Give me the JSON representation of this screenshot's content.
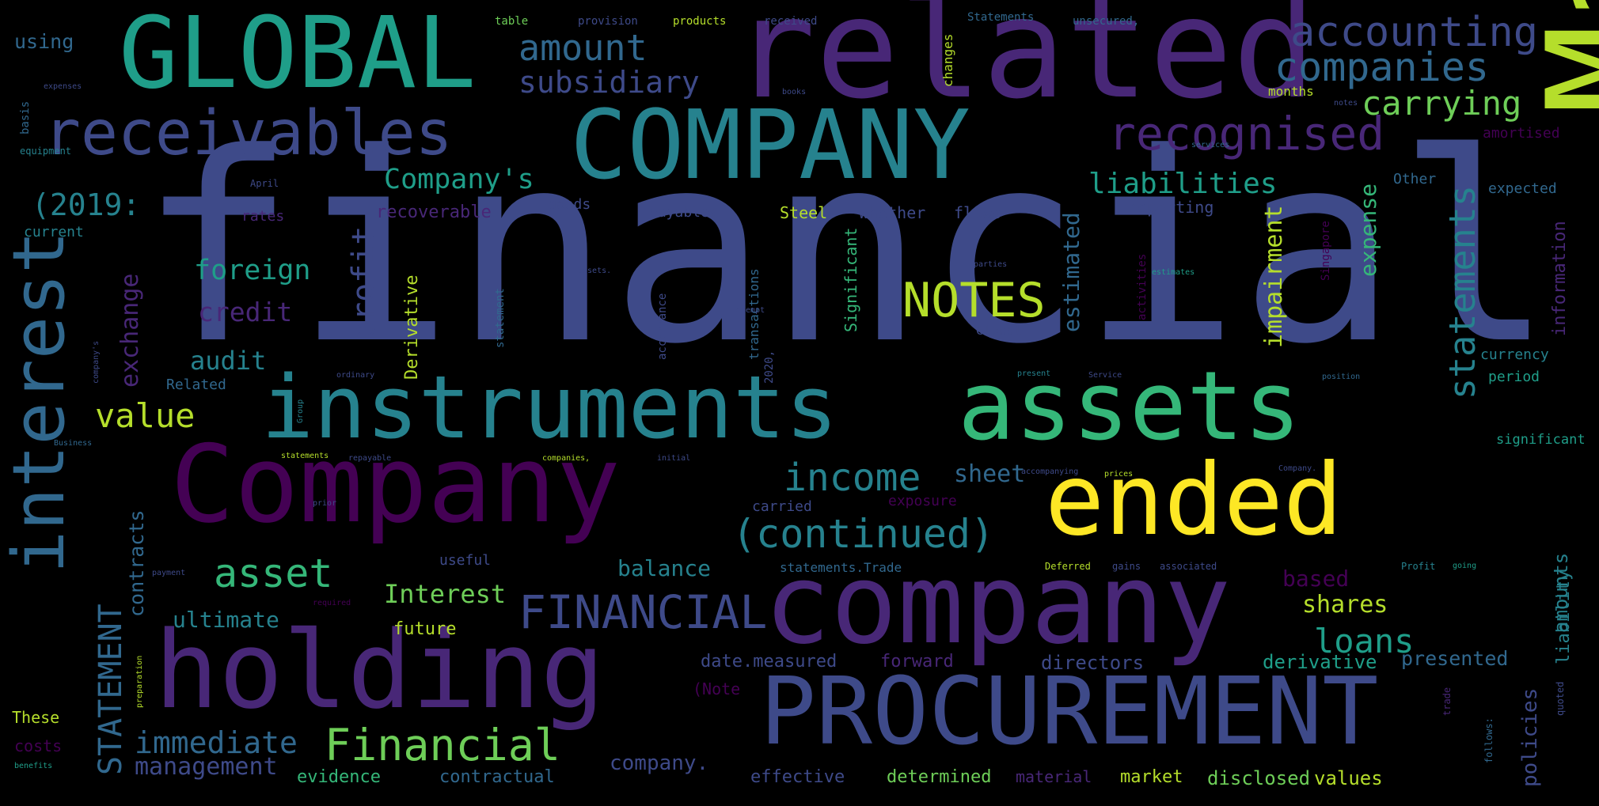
{
  "palette": {
    "background": "#000000",
    "colors": [
      "#440154",
      "#482777",
      "#3e4a89",
      "#31688e",
      "#26828e",
      "#1f9e89",
      "#35b779",
      "#6ece58",
      "#b5de2b",
      "#fde725"
    ]
  },
  "words": [
    {
      "text": "financial",
      "color": "#3e4a89",
      "vertical": false
    },
    {
      "text": "March",
      "color": "#b5de2b",
      "vertical": true
    },
    {
      "text": "related",
      "color": "#482777",
      "vertical": false
    },
    {
      "text": "GLOBAL",
      "color": "#1f9e89",
      "vertical": false
    },
    {
      "text": "COMPANY",
      "color": "#26828e",
      "vertical": false
    },
    {
      "text": "Company",
      "color": "#440154",
      "vertical": false
    },
    {
      "text": "company",
      "color": "#482777",
      "vertical": false
    },
    {
      "text": "instruments",
      "color": "#26828e",
      "vertical": false
    },
    {
      "text": "assets",
      "color": "#35b779",
      "vertical": false
    },
    {
      "text": "holding",
      "color": "#482777",
      "vertical": false
    },
    {
      "text": "ended",
      "color": "#fde725",
      "vertical": false
    },
    {
      "text": "PROCUREMENT",
      "color": "#3e4a89",
      "vertical": false
    },
    {
      "text": "interest",
      "color": "#31688e",
      "vertical": true
    },
    {
      "text": "receivables",
      "color": "#3e4a89",
      "vertical": false
    },
    {
      "text": "recognised",
      "color": "#482777",
      "vertical": false
    },
    {
      "text": "accounting",
      "color": "#3e4a89",
      "vertical": false
    },
    {
      "text": "companies",
      "color": "#31688e",
      "vertical": false
    },
    {
      "text": "amount",
      "color": "#31688e",
      "vertical": false
    },
    {
      "text": "subsidiary",
      "color": "#3e4a89",
      "vertical": false
    },
    {
      "text": "carrying",
      "color": "#6ece58",
      "vertical": false
    },
    {
      "text": "(continued)",
      "color": "#26828e",
      "vertical": false
    },
    {
      "text": "FINANCIAL",
      "color": "#3e4a89",
      "vertical": false
    },
    {
      "text": "Financial",
      "color": "#6ece58",
      "vertical": false
    },
    {
      "text": "statements",
      "color": "#26828e",
      "vertical": true
    },
    {
      "text": "STATEMENT",
      "color": "#31688e",
      "vertical": true
    },
    {
      "text": "income",
      "color": "#26828e",
      "vertical": false
    },
    {
      "text": "asset",
      "color": "#35b779",
      "vertical": false
    },
    {
      "text": "NOTES",
      "color": "#b5de2b",
      "vertical": false
    },
    {
      "text": "profit",
      "color": "#3e4a89",
      "vertical": true
    },
    {
      "text": "liabilities",
      "color": "#1f9e89",
      "vertical": false
    },
    {
      "text": "Company's",
      "color": "#1f9e89",
      "vertical": false
    },
    {
      "text": "loans",
      "color": "#1f9e89",
      "vertical": false
    },
    {
      "text": "value",
      "color": "#b5de2b",
      "vertical": false
    },
    {
      "text": "immediate",
      "color": "#31688e",
      "vertical": false
    },
    {
      "text": "(2019:",
      "color": "#26828e",
      "vertical": false
    },
    {
      "text": "foreign",
      "color": "#1f9e89",
      "vertical": false
    },
    {
      "text": "credit",
      "color": "#482777",
      "vertical": false
    },
    {
      "text": "audit",
      "color": "#26828e",
      "vertical": false
    },
    {
      "text": "exchange",
      "color": "#482777",
      "vertical": true
    },
    {
      "text": "Interest",
      "color": "#6ece58",
      "vertical": false
    },
    {
      "text": "ultimate",
      "color": "#26828e",
      "vertical": false
    },
    {
      "text": "management",
      "color": "#3e4a89",
      "vertical": false
    },
    {
      "text": "shares",
      "color": "#b5de2b",
      "vertical": false
    },
    {
      "text": "sheet",
      "color": "#31688e",
      "vertical": false
    },
    {
      "text": "balance",
      "color": "#26828e",
      "vertical": false
    },
    {
      "text": "based",
      "color": "#440154",
      "vertical": false
    },
    {
      "text": "impairment",
      "color": "#b5de2b",
      "vertical": true
    },
    {
      "text": "estimated",
      "color": "#31688e",
      "vertical": true
    },
    {
      "text": "expense",
      "color": "#35b779",
      "vertical": true
    },
    {
      "text": "contracts",
      "color": "#31688e",
      "vertical": true
    },
    {
      "text": "policies",
      "color": "#3e4a89",
      "vertical": true
    },
    {
      "text": "amounts",
      "color": "#26828e",
      "vertical": true
    },
    {
      "text": "liability",
      "color": "#26828e",
      "vertical": true
    },
    {
      "text": "information",
      "color": "#482777",
      "vertical": true
    },
    {
      "text": "presented",
      "color": "#31688e",
      "vertical": false
    },
    {
      "text": "derivative",
      "color": "#1f9e89",
      "vertical": false
    },
    {
      "text": "directors",
      "color": "#3e4a89",
      "vertical": false
    },
    {
      "text": "date.measured",
      "color": "#3e4a89",
      "vertical": false
    },
    {
      "text": "forward",
      "color": "#482777",
      "vertical": false
    },
    {
      "text": "future",
      "color": "#b5de2b",
      "vertical": false
    },
    {
      "text": "company.",
      "color": "#3e4a89",
      "vertical": false
    },
    {
      "text": "determined",
      "color": "#6ece58",
      "vertical": false
    },
    {
      "text": "effective",
      "color": "#3e4a89",
      "vertical": false
    },
    {
      "text": "contractual",
      "color": "#31688e",
      "vertical": false
    },
    {
      "text": "material",
      "color": "#482777",
      "vertical": false
    },
    {
      "text": "market",
      "color": "#b5de2b",
      "vertical": false
    },
    {
      "text": "disclosed",
      "color": "#6ece58",
      "vertical": false
    },
    {
      "text": "values",
      "color": "#b5de2b",
      "vertical": false
    },
    {
      "text": "evidence",
      "color": "#35b779",
      "vertical": false
    },
    {
      "text": "costs",
      "color": "#440154",
      "vertical": false
    },
    {
      "text": "These",
      "color": "#b5de2b",
      "vertical": false
    },
    {
      "text": "using",
      "color": "#31688e",
      "vertical": false
    },
    {
      "text": "current",
      "color": "#26828e",
      "vertical": false
    },
    {
      "text": "rates",
      "color": "#482777",
      "vertical": false
    },
    {
      "text": "recoverable",
      "color": "#482777",
      "vertical": false
    },
    {
      "text": "goods",
      "color": "#3e4a89",
      "vertical": false
    },
    {
      "text": "payables",
      "color": "#3e4a89",
      "vertical": false
    },
    {
      "text": "Steel",
      "color": "#b5de2b",
      "vertical": false
    },
    {
      "text": "whether",
      "color": "#3e4a89",
      "vertical": false
    },
    {
      "text": "flows",
      "color": "#3e4a89",
      "vertical": false
    },
    {
      "text": "reporting",
      "color": "#3e4a89",
      "vertical": false
    },
    {
      "text": "Other",
      "color": "#31688e",
      "vertical": false
    },
    {
      "text": "expected",
      "color": "#31688e",
      "vertical": false
    },
    {
      "text": "amortised",
      "color": "#440154",
      "vertical": false
    },
    {
      "text": "months",
      "color": "#b5de2b",
      "vertical": false
    },
    {
      "text": "currency",
      "color": "#26828e",
      "vertical": false
    },
    {
      "text": "period",
      "color": "#1f9e89",
      "vertical": false
    },
    {
      "text": "significant",
      "color": "#1f9e89",
      "vertical": false
    },
    {
      "text": "Significant",
      "color": "#35b779",
      "vertical": true
    },
    {
      "text": "Related",
      "color": "#31688e",
      "vertical": false
    },
    {
      "text": "Derivative",
      "color": "#b5de2b",
      "vertical": true
    },
    {
      "text": "carried",
      "color": "#3e4a89",
      "vertical": false
    },
    {
      "text": "exposure",
      "color": "#440154",
      "vertical": false
    },
    {
      "text": "useful",
      "color": "#3e4a89",
      "vertical": false
    },
    {
      "text": "statements.Trade",
      "color": "#31688e",
      "vertical": false
    },
    {
      "text": "Deferred",
      "color": "#b5de2b",
      "vertical": false
    },
    {
      "text": "gains",
      "color": "#3e4a89",
      "vertical": false
    },
    {
      "text": "associated",
      "color": "#3e4a89",
      "vertical": false
    },
    {
      "text": "Profit",
      "color": "#26828e",
      "vertical": false
    },
    {
      "text": "(Note",
      "color": "#440154",
      "vertical": false
    },
    {
      "text": "changes",
      "color": "#b5de2b",
      "vertical": true
    },
    {
      "text": "table",
      "color": "#6ece58",
      "vertical": false
    },
    {
      "text": "provision",
      "color": "#3e4a89",
      "vertical": false
    },
    {
      "text": "products",
      "color": "#b5de2b",
      "vertical": false
    },
    {
      "text": "received",
      "color": "#3e4a89",
      "vertical": false
    },
    {
      "text": "Statements",
      "color": "#31688e",
      "vertical": false
    },
    {
      "text": "unsecured,",
      "color": "#31688e",
      "vertical": false
    },
    {
      "text": "transactions",
      "color": "#31688e",
      "vertical": true
    },
    {
      "text": "accordance",
      "color": "#3e4a89",
      "vertical": true
    },
    {
      "text": "statement",
      "color": "#31688e",
      "vertical": true
    },
    {
      "text": "activities",
      "color": "#440154",
      "vertical": true
    },
    {
      "text": "Singapore",
      "color": "#440154",
      "vertical": true
    },
    {
      "text": "Global",
      "color": "#3e4a89",
      "vertical": false
    },
    {
      "text": "2020,",
      "color": "#3e4a89",
      "vertical": true
    },
    {
      "text": "basis",
      "color": "#31688e",
      "vertical": true
    },
    {
      "text": "equipment",
      "color": "#26828e",
      "vertical": false
    },
    {
      "text": "expenses",
      "color": "#3e4a89",
      "vertical": false
    },
    {
      "text": "April",
      "color": "#3e4a89",
      "vertical": false
    },
    {
      "text": "Business",
      "color": "#31688e",
      "vertical": false
    },
    {
      "text": "statements",
      "color": "#b5de2b",
      "vertical": false
    },
    {
      "text": "repayable",
      "color": "#3e4a89",
      "vertical": false
    },
    {
      "text": "companies,",
      "color": "#b5de2b",
      "vertical": false
    },
    {
      "text": "initial",
      "color": "#3e4a89",
      "vertical": false
    },
    {
      "text": "accompanying",
      "color": "#3e4a89",
      "vertical": false
    },
    {
      "text": "prices",
      "color": "#b5de2b",
      "vertical": false
    },
    {
      "text": "Company.",
      "color": "#3e4a89",
      "vertical": false
    },
    {
      "text": "position",
      "color": "#31688e",
      "vertical": false
    },
    {
      "text": "present",
      "color": "#26828e",
      "vertical": false
    },
    {
      "text": "Service",
      "color": "#3e4a89",
      "vertical": false
    },
    {
      "text": "ordinary",
      "color": "#3e4a89",
      "vertical": false
    },
    {
      "text": "prior",
      "color": "#3e4a89",
      "vertical": false
    },
    {
      "text": "payment",
      "color": "#3e4a89",
      "vertical": false
    },
    {
      "text": "required",
      "color": "#440154",
      "vertical": false
    },
    {
      "text": "benefits",
      "color": "#1f9e89",
      "vertical": false
    },
    {
      "text": "preparation",
      "color": "#b5de2b",
      "vertical": true
    },
    {
      "text": "going",
      "color": "#1f9e89",
      "vertical": false
    },
    {
      "text": "trade",
      "color": "#482777",
      "vertical": true
    },
    {
      "text": "follows:",
      "color": "#31688e",
      "vertical": true
    },
    {
      "text": "quoted",
      "color": "#3e4a89",
      "vertical": true
    },
    {
      "text": "books",
      "color": "#3e4a89",
      "vertical": false
    },
    {
      "text": "notes",
      "color": "#3e4a89",
      "vertical": false
    },
    {
      "text": "services",
      "color": "#31688e",
      "vertical": false
    },
    {
      "text": "parties",
      "color": "#3e4a89",
      "vertical": false
    },
    {
      "text": "estimates",
      "color": "#1f9e89",
      "vertical": false
    },
    {
      "text": "assets.",
      "color": "#3e4a89",
      "vertical": false
    },
    {
      "text": "exempt",
      "color": "#3e4a89",
      "vertical": false
    },
    {
      "text": "company's",
      "color": "#3e4a89",
      "vertical": true
    },
    {
      "text": "Group",
      "color": "#26828e",
      "vertical": true
    }
  ]
}
